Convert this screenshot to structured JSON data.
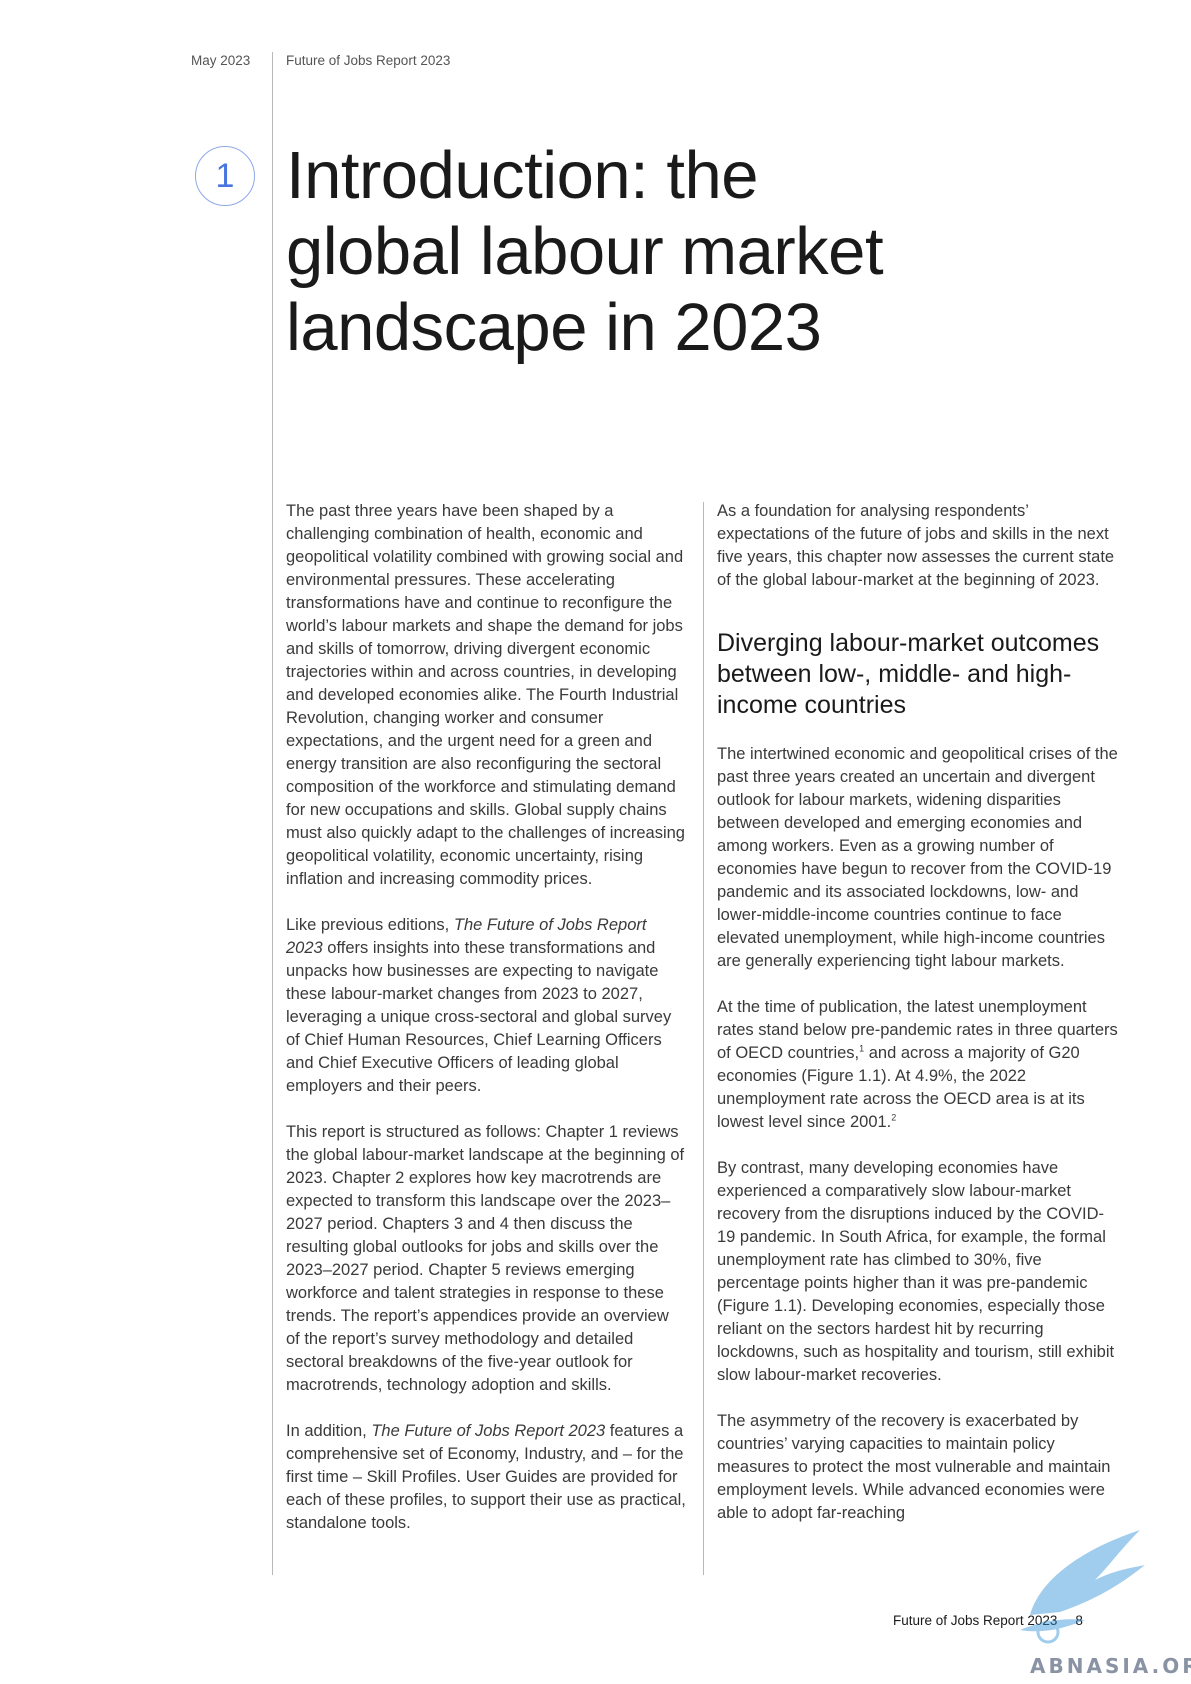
{
  "header": {
    "date": "May 2023",
    "report": "Future of Jobs Report 2023"
  },
  "chapter": {
    "number": "1",
    "title_lines": [
      "Introduction: the",
      "global labour market",
      "landscape in 2023"
    ]
  },
  "left_column": {
    "p1": "The past three years have been shaped by a challenging combination of health, economic and geopolitical volatility combined with growing social and environmental pressures. These accelerating transformations have and continue to reconfigure the world’s labour markets and shape the demand for jobs and skills of tomorrow, driving divergent economic trajectories within and across countries, in developing and developed economies alike. The Fourth Industrial Revolution, changing worker and consumer expectations, and the urgent need for a green and energy transition are also reconfiguring the sectoral composition of the workforce and stimulating demand for new occupations and skills. Global supply chains must also quickly adapt to the challenges of increasing geopolitical volatility, economic uncertainty, rising inflation and increasing commodity prices.",
    "p2_pre": "Like previous editions, ",
    "p2_em": "The Future of Jobs Report 2023",
    "p2_post": " offers insights into these transformations and unpacks how businesses are expecting to navigate these labour-market changes from 2023 to 2027, leveraging a unique cross-sectoral and global survey of Chief Human Resources, Chief Learning Officers and Chief Executive Officers of leading global employers and their peers.",
    "p3": "This report is structured as follows: Chapter 1 reviews the global labour-market landscape at the beginning of 2023. Chapter 2 explores how key macrotrends are expected to transform this landscape over the 2023–2027 period. Chapters 3 and 4 then discuss the resulting global outlooks for jobs and skills over the 2023–2027 period. Chapter 5 reviews emerging workforce and talent strategies in response to these trends. The report’s appendices provide an overview of the report’s survey methodology and detailed sectoral breakdowns of the five-year outlook for macrotrends, technology adoption and skills.",
    "p4_pre": "In addition, ",
    "p4_em": "The Future of Jobs Report 2023",
    "p4_post": " features a comprehensive set of Economy, Industry, and – for the first time – Skill Profiles. User Guides are provided for each of these profiles, to support their use as practical, standalone tools."
  },
  "right_column": {
    "p1": "As a foundation for analysing respondents’ expectations of the future of jobs and skills in the next five years, this chapter now assesses the current state of the global labour-market at the beginning of 2023.",
    "subheading": "Diverging labour-market outcomes between low-, middle- and high-income countries",
    "p2": "The intertwined economic and geopolitical crises of the past three years created an uncertain and divergent outlook for labour markets, widening disparities between developed and emerging economies and among workers. Even as a growing number of economies have begun to recover from the COVID-19 pandemic and its associated lockdowns, low- and lower-middle-income countries continue to face elevated unemployment, while high-income countries are generally experiencing tight labour markets.",
    "p3_a": "At the time of publication, the latest unemployment rates stand below pre-pandemic rates in three quarters of OECD countries,",
    "p3_sup1": "1",
    "p3_b": " and across a majority of G20 economies (Figure 1.1). At 4.9%, the 2022 unemployment rate across the OECD area is at its lowest level since 2001.",
    "p3_sup2": "2",
    "p4": "By contrast, many developing economies have experienced a comparatively slow labour-market recovery from the disruptions induced by the COVID-19 pandemic. In South Africa, for example, the formal unemployment rate has climbed to 30%, five percentage points higher than it was pre-pandemic (Figure 1.1). Developing economies, especially those reliant on the sectors hardest hit by recurring lockdowns, such as hospitality and tourism, still exhibit slow labour-market recoveries.",
    "p5": "The asymmetry of the recovery is exacerbated by countries’ varying capacities to maintain policy measures to protect the most vulnerable and maintain employment levels. While advanced economies were able to adopt far-reaching"
  },
  "footer": {
    "report": "Future of Jobs Report 2023",
    "page": "8"
  },
  "watermark": {
    "text": "ABNASIA.ORG",
    "icon": "bird-logo-icon",
    "color": "#2f8fd8"
  }
}
